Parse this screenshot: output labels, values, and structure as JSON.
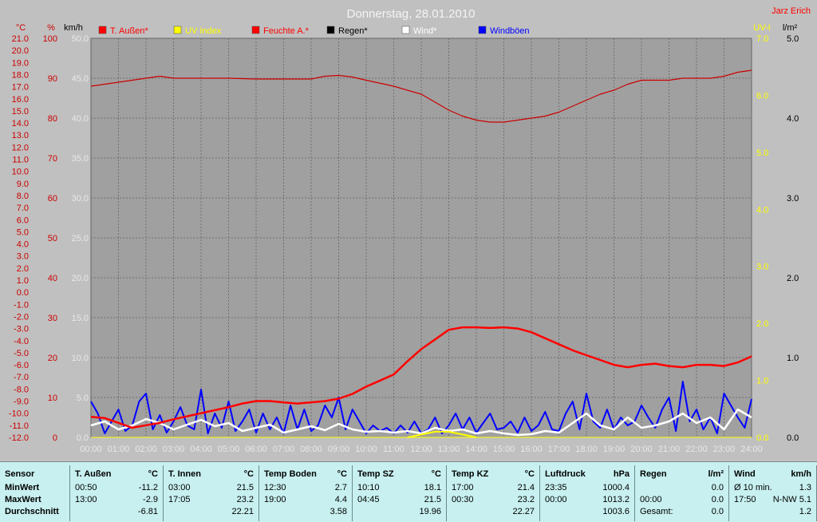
{
  "chart_data": {
    "type": "line",
    "title": "Donnerstag, 28.01.2010",
    "author": "Jarz Erich",
    "x_ticks": [
      "00:00",
      "01:00",
      "02:00",
      "03:00",
      "04:00",
      "05:00",
      "06:00",
      "07:00",
      "08:00",
      "09:00",
      "10:00",
      "11:00",
      "12:00",
      "13:00",
      "14:00",
      "15:00",
      "16:00",
      "17:00",
      "18:00",
      "19:00",
      "20:00",
      "21:00",
      "22:00",
      "23:00",
      "24:00"
    ],
    "axes": {
      "temp_c": {
        "unit": "°C",
        "ylim": [
          -12,
          21
        ],
        "ticks": [
          "21.0",
          "20.0",
          "19.0",
          "18.0",
          "17.0",
          "16.0",
          "15.0",
          "14.0",
          "13.0",
          "12.0",
          "11.0",
          "10.0",
          "9.0",
          "8.0",
          "7.0",
          "6.0",
          "5.0",
          "4.0",
          "3.0",
          "2.0",
          "1.0",
          "0.0",
          "-1.0",
          "-2.0",
          "-3.0",
          "-4.0",
          "-5.0",
          "-6.0",
          "-7.0",
          "-8.0",
          "-9.0",
          "-10.0",
          "-11.0",
          "-12.0"
        ]
      },
      "humidity": {
        "unit": "%",
        "ylim": [
          0,
          100
        ],
        "ticks": [
          "100",
          "90",
          "80",
          "70",
          "60",
          "50",
          "40",
          "30",
          "20",
          "10",
          "0"
        ]
      },
      "wind_kmh": {
        "unit": "km/h",
        "ylim": [
          0,
          50
        ],
        "ticks": [
          "50.0",
          "45.0",
          "40.0",
          "35.0",
          "30.0",
          "25.0",
          "20.0",
          "15.0",
          "10.0",
          "5.0",
          "0.0"
        ]
      },
      "uv": {
        "unit": "UV-I",
        "ylim": [
          0,
          7
        ],
        "ticks": [
          "7.0",
          "6.0",
          "5.0",
          "4.0",
          "3.0",
          "2.0",
          "1.0",
          "0.0"
        ]
      },
      "rain": {
        "unit": "l/m²",
        "ylim": [
          0,
          5
        ],
        "ticks": [
          "5.0",
          "4.0",
          "3.0",
          "2.0",
          "1.0",
          "0.0"
        ]
      }
    },
    "legend": [
      {
        "name": "T. Außen*",
        "color": "#ff0000"
      },
      {
        "name": "UV Index",
        "color": "#ffff00"
      },
      {
        "name": "Feuchte A.*",
        "color": "#ff0000"
      },
      {
        "name": "Regen*",
        "color": "#000000"
      },
      {
        "name": "Wind*",
        "color": "#ffffff"
      },
      {
        "name": "Windböen",
        "color": "#0000ff"
      }
    ],
    "series": [
      {
        "name": "Feuchte A.*",
        "axis": "humidity",
        "color": "#cc0000",
        "x": [
          0,
          0.5,
          1,
          1.5,
          2,
          2.5,
          3,
          4,
          5,
          6,
          7,
          8,
          8.5,
          9,
          9.5,
          10,
          11,
          12,
          12.5,
          13,
          13.5,
          14,
          14.5,
          15,
          16,
          16.5,
          17,
          17.5,
          18,
          18.5,
          19,
          19.5,
          20,
          20.5,
          21,
          21.5,
          22,
          22.5,
          23,
          23.5,
          24
        ],
        "values": [
          88,
          88.5,
          89,
          89.5,
          90,
          90.5,
          90,
          90,
          90,
          89.8,
          89.8,
          89.8,
          90.5,
          90.7,
          90.3,
          89.5,
          88,
          86,
          84,
          82,
          80.5,
          79.5,
          79,
          79,
          80,
          80.5,
          81.5,
          83,
          84.5,
          86,
          87,
          88.5,
          89.5,
          89.5,
          89.5,
          90,
          90,
          90,
          90.5,
          91.5,
          92
        ]
      },
      {
        "name": "T. Außen*",
        "axis": "temp_c",
        "color": "#ff0000",
        "x": [
          0,
          0.5,
          1,
          1.5,
          2,
          2.5,
          3,
          4,
          5,
          5.5,
          6,
          6.5,
          7,
          7.5,
          8,
          8.5,
          9,
          9.5,
          10,
          10.5,
          11,
          11.5,
          12,
          12.5,
          13,
          13.5,
          14,
          14.5,
          15,
          15.5,
          16,
          16.5,
          17,
          17.5,
          18,
          18.5,
          19,
          19.5,
          20,
          20.5,
          21,
          21.5,
          22,
          22.5,
          23,
          23.5,
          24
        ],
        "values": [
          -10.3,
          -10.4,
          -10.8,
          -11.2,
          -11.0,
          -10.8,
          -10.5,
          -10.0,
          -9.5,
          -9.2,
          -9.0,
          -9.0,
          -9.1,
          -9.2,
          -9.1,
          -9.0,
          -8.8,
          -8.4,
          -7.8,
          -7.3,
          -6.8,
          -5.7,
          -4.7,
          -3.9,
          -3.1,
          -2.9,
          -2.9,
          -2.95,
          -2.9,
          -3.0,
          -3.3,
          -3.8,
          -4.3,
          -4.8,
          -5.2,
          -5.6,
          -6.0,
          -6.2,
          -6.0,
          -5.9,
          -6.1,
          -6.2,
          -6.0,
          -6.0,
          -6.1,
          -5.8,
          -5.3
        ]
      },
      {
        "name": "UV Index",
        "axis": "uv",
        "color": "#ffff00",
        "x": [
          11.5,
          12,
          12.5,
          13,
          13.5,
          14
        ],
        "values": [
          0.0,
          0.05,
          0.1,
          0.1,
          0.05,
          0.0
        ]
      },
      {
        "name": "Wind*",
        "axis": "wind_kmh",
        "color": "#ffffff",
        "x": [
          0,
          0.5,
          1,
          1.5,
          2,
          2.5,
          3,
          3.5,
          4,
          4.5,
          5,
          5.5,
          6,
          6.5,
          7,
          7.5,
          8,
          8.5,
          9,
          9.5,
          10,
          10.5,
          11,
          11.5,
          12,
          12.5,
          13,
          13.5,
          14,
          14.5,
          15,
          15.5,
          16,
          16.5,
          17,
          17.5,
          18,
          18.5,
          19,
          19.5,
          20,
          20.5,
          21,
          21.5,
          22,
          22.5,
          23,
          23.5,
          24
        ],
        "values": [
          1.5,
          2.0,
          1.0,
          1.5,
          2.3,
          1.8,
          1.0,
          1.6,
          2.2,
          1.4,
          1.8,
          0.8,
          1.2,
          1.6,
          0.6,
          1.0,
          1.4,
          0.9,
          1.7,
          1.0,
          0.7,
          0.8,
          0.6,
          0.8,
          0.5,
          1.2,
          0.8,
          1.0,
          0.5,
          0.8,
          0.5,
          0.3,
          0.4,
          0.8,
          0.6,
          1.8,
          3.0,
          1.5,
          1.0,
          2.5,
          1.2,
          1.5,
          2.0,
          3.0,
          1.8,
          2.5,
          1.0,
          3.5,
          2.5
        ]
      },
      {
        "name": "Windböen",
        "axis": "wind_kmh",
        "color": "#0000ff",
        "x": [
          0,
          0.25,
          0.5,
          0.75,
          1,
          1.25,
          1.5,
          1.75,
          2,
          2.25,
          2.5,
          2.75,
          3,
          3.25,
          3.5,
          3.75,
          4,
          4.25,
          4.5,
          4.75,
          5,
          5.25,
          5.5,
          5.75,
          6,
          6.25,
          6.5,
          6.75,
          7,
          7.25,
          7.5,
          7.75,
          8,
          8.25,
          8.5,
          8.75,
          9,
          9.25,
          9.5,
          9.75,
          10,
          10.25,
          10.5,
          10.75,
          11,
          11.25,
          11.5,
          11.75,
          12,
          12.25,
          12.5,
          12.75,
          13,
          13.25,
          13.5,
          13.75,
          14,
          14.25,
          14.5,
          14.75,
          15,
          15.25,
          15.5,
          15.75,
          16,
          16.25,
          16.5,
          16.75,
          17,
          17.25,
          17.5,
          17.75,
          18,
          18.25,
          18.5,
          18.75,
          19,
          19.25,
          19.5,
          19.75,
          20,
          20.25,
          20.5,
          20.75,
          21,
          21.25,
          21.5,
          21.75,
          22,
          22.25,
          22.5,
          22.75,
          23,
          23.25,
          23.5,
          23.75,
          24
        ],
        "values": [
          4.5,
          3.0,
          0.5,
          2.0,
          3.5,
          0.8,
          1.5,
          4.5,
          5.5,
          1.0,
          2.8,
          0.6,
          2.0,
          3.8,
          1.5,
          1.0,
          6.0,
          0.5,
          3.0,
          1.2,
          4.5,
          0.8,
          2.0,
          3.5,
          0.6,
          3.0,
          1.0,
          2.5,
          0.5,
          4.0,
          1.0,
          3.5,
          0.8,
          1.5,
          4.0,
          2.5,
          5.0,
          1.0,
          3.5,
          2.0,
          0.5,
          1.5,
          0.8,
          1.2,
          0.5,
          1.5,
          0.6,
          2.0,
          0.5,
          1.0,
          2.5,
          0.5,
          1.5,
          3.0,
          1.0,
          2.5,
          0.6,
          1.8,
          3.0,
          1.0,
          1.2,
          2.0,
          0.6,
          2.5,
          0.8,
          1.5,
          3.2,
          1.0,
          0.8,
          3.0,
          4.5,
          1.0,
          5.5,
          2.0,
          1.2,
          3.5,
          1.0,
          2.5,
          1.5,
          2.0,
          4.0,
          2.5,
          1.2,
          3.5,
          5.0,
          0.8,
          7.0,
          2.0,
          3.5,
          1.0,
          2.5,
          0.5,
          5.5,
          4.0,
          2.5,
          1.2,
          4.8
        ]
      }
    ]
  },
  "summary": [
    {
      "name": "sensor",
      "header": "Sensor",
      "unit": "",
      "rows": [
        [
          "MinWert",
          ""
        ],
        [
          "MaxWert",
          ""
        ],
        [
          "Durchschnitt",
          ""
        ]
      ]
    },
    {
      "name": "t-aussen",
      "header": "T. Außen",
      "unit": "°C",
      "rows": [
        [
          "00:50",
          "-11.2"
        ],
        [
          "13:00",
          "-2.9"
        ],
        [
          "",
          "-6.81"
        ]
      ]
    },
    {
      "name": "t-innen",
      "header": "T. Innen",
      "unit": "°C",
      "rows": [
        [
          "03:00",
          "21.5"
        ],
        [
          "17:05",
          "23.2"
        ],
        [
          "",
          "22.21"
        ]
      ]
    },
    {
      "name": "temp-boden",
      "header": "Temp Boden",
      "unit": "°C",
      "rows": [
        [
          "12:30",
          "2.7"
        ],
        [
          "19:00",
          "4.4"
        ],
        [
          "",
          "3.58"
        ]
      ]
    },
    {
      "name": "temp-sz",
      "header": "Temp SZ",
      "unit": "°C",
      "rows": [
        [
          "10:10",
          "18.1"
        ],
        [
          "04:45",
          "21.5"
        ],
        [
          "",
          "19.96"
        ]
      ]
    },
    {
      "name": "temp-kz",
      "header": "Temp KZ",
      "unit": "°C",
      "rows": [
        [
          "17:00",
          "21.4"
        ],
        [
          "00:30",
          "23.2"
        ],
        [
          "",
          "22.27"
        ]
      ]
    },
    {
      "name": "luftdruck",
      "header": "Luftdruck",
      "unit": "hPa",
      "rows": [
        [
          "23:35",
          "1000.4"
        ],
        [
          "00:00",
          "1013.2"
        ],
        [
          "",
          "1003.6"
        ]
      ]
    },
    {
      "name": "regen",
      "header": "Regen",
      "unit": "l/m²",
      "rows": [
        [
          "",
          "0.0"
        ],
        [
          "00:00",
          "0.0"
        ],
        [
          "Gesamt:",
          "0.0"
        ]
      ]
    },
    {
      "name": "wind",
      "header": "Wind",
      "unit": "km/h",
      "rows": [
        [
          "Ø 10 min.",
          "1.3"
        ],
        [
          "17:50",
          "N-NW 5.1"
        ],
        [
          "",
          "1.2"
        ]
      ]
    }
  ]
}
